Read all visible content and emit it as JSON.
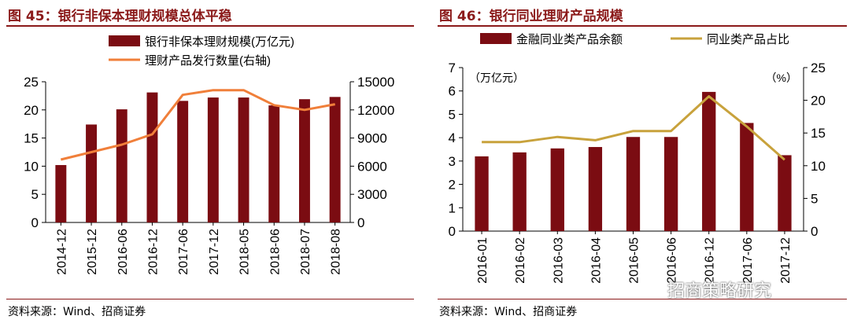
{
  "chart_data": [
    {
      "type": "bar",
      "title": "图 45：银行非保本理财规模总体平稳",
      "categories": [
        "2014-12",
        "2015-12",
        "2016-06",
        "2016-12",
        "2017-06",
        "2017-12",
        "2018-05",
        "2018-06",
        "2018-07",
        "2018-08"
      ],
      "series": [
        {
          "name": "银行非保本理财规模(万亿元)",
          "type": "bar",
          "axis": "left",
          "values": [
            10.2,
            17.4,
            20.1,
            23.1,
            21.6,
            22.2,
            22.2,
            20.8,
            21.9,
            22.3
          ]
        },
        {
          "name": "理财产品发行数量(右轴)",
          "type": "line",
          "axis": "right",
          "values": [
            6700,
            7500,
            8300,
            9400,
            13600,
            14100,
            14100,
            12500,
            12000,
            12600
          ]
        }
      ],
      "ylim": [
        0,
        25
      ],
      "yticks": [
        0,
        5,
        10,
        15,
        20,
        25
      ],
      "y2lim": [
        0,
        15000
      ],
      "y2ticks": [
        0,
        3000,
        6000,
        9000,
        12000,
        15000
      ],
      "colors": {
        "bar": "#7b0c12",
        "line": "#f07f3a"
      },
      "legend": "top-center",
      "source": "资料来源：Wind、招商证券"
    },
    {
      "type": "bar",
      "title": "图 46：银行同业理财产品规模",
      "categories": [
        "2016-01",
        "2016-02",
        "2016-03",
        "2016-04",
        "2016-05",
        "2016-06",
        "2016-12",
        "2017-06",
        "2017-12"
      ],
      "series": [
        {
          "name": "金融同业类产品余额",
          "type": "bar",
          "axis": "left",
          "values": [
            3.2,
            3.37,
            3.54,
            3.6,
            4.03,
            4.03,
            5.96,
            4.63,
            3.25
          ]
        },
        {
          "name": "同业类产品占比",
          "type": "line",
          "axis": "right",
          "values": [
            13.6,
            13.6,
            14.4,
            13.9,
            15.3,
            15.3,
            20.6,
            16.0,
            10.9
          ]
        }
      ],
      "ylabel": "（万亿元）",
      "y2label": "（%）",
      "ylim": [
        0,
        7
      ],
      "yticks": [
        0,
        1,
        2,
        3,
        4,
        5,
        6,
        7
      ],
      "y2lim": [
        0,
        25
      ],
      "y2ticks": [
        0,
        5,
        10,
        15,
        20,
        25
      ],
      "colors": {
        "bar": "#7b0c12",
        "line": "#c8a23c"
      },
      "legend": "top-center",
      "source": "资料来源：Wind、招商证券"
    }
  ],
  "watermark": "招商策略研究"
}
